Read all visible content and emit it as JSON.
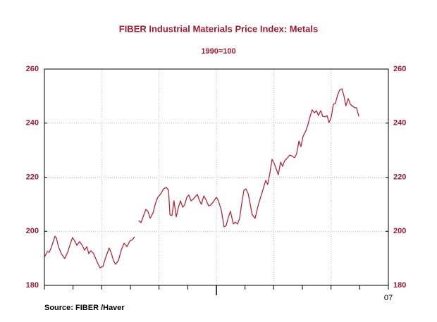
{
  "chart_data": {
    "type": "line",
    "title": "FIBER Industrial Materials Price Index: Metals",
    "subtitle": "1990=100",
    "source": "Source:  FIBER /Haver",
    "xlim": [
      0,
      12
    ],
    "xticks": [
      {
        "value": 12,
        "label": "07"
      }
    ],
    "minor_xticks": [
      0,
      1,
      2,
      3,
      4,
      5,
      6,
      7,
      8,
      9,
      10,
      11
    ],
    "major_xticks": [
      6
    ],
    "xgrid": [
      2,
      4,
      6,
      8,
      10
    ],
    "ylim": [
      180,
      260
    ],
    "yticks": [
      180,
      200,
      220,
      240,
      260
    ],
    "grid": true,
    "series": [
      {
        "name": "Metals",
        "color": "#b0283a",
        "x": [
          0,
          0.1,
          0.17,
          0.25,
          0.37,
          0.42,
          0.49,
          0.59,
          0.71,
          0.81,
          0.91,
          0.98,
          1.06,
          1.13,
          1.23,
          1.33,
          1.4,
          1.48,
          1.55,
          1.62,
          1.72,
          1.84,
          1.94,
          2.04,
          2.14,
          2.26,
          2.34,
          2.41,
          2.48,
          2.58,
          2.68,
          2.78,
          2.88,
          2.98,
          3.07,
          3.15,
          3.22,
          3.29,
          3.37,
          3.47,
          3.54,
          3.61,
          3.69,
          3.79,
          3.88,
          3.96,
          4.06,
          4.16,
          4.25,
          4.33,
          4.38,
          4.45,
          4.52,
          4.6,
          4.67,
          4.75,
          4.82,
          4.89,
          4.97,
          5.04,
          5.11,
          5.19,
          5.26,
          5.34,
          5.41,
          5.48,
          5.56,
          5.63,
          5.73,
          5.8,
          5.9,
          6.0,
          6.07,
          6.17,
          6.27,
          6.34,
          6.42,
          6.49,
          6.59,
          6.66,
          6.74,
          6.81,
          6.88,
          6.96,
          7.03,
          7.11,
          7.18,
          7.25,
          7.35,
          7.45,
          7.52,
          7.62,
          7.72,
          7.79,
          7.87,
          7.94,
          8.02,
          8.09,
          8.16,
          8.24,
          8.31,
          8.38,
          8.46,
          8.56,
          8.63,
          8.73,
          8.8,
          8.88,
          8.95,
          9.02,
          9.12,
          9.2,
          9.27,
          9.34,
          9.42,
          9.49,
          9.56,
          9.64,
          9.71,
          9.79,
          9.86,
          9.93,
          10.01,
          10.08,
          10.15,
          10.23,
          10.3,
          10.38,
          10.45,
          10.52,
          10.6,
          10.67,
          10.74,
          10.82,
          10.89,
          10.97
        ],
        "values": [
          190.4,
          192.5,
          192.2,
          194.3,
          198.2,
          197.5,
          194.3,
          191.7,
          189.9,
          192.2,
          195.6,
          197.7,
          196.4,
          194.8,
          196.2,
          194.6,
          193,
          194.3,
          191.7,
          192.8,
          191.7,
          188.6,
          186.5,
          187,
          190.4,
          193.8,
          191.7,
          189.1,
          187.8,
          189.1,
          193,
          195.6,
          194.3,
          196.4,
          196.9,
          198,
          null,
          204,
          203.2,
          206.1,
          208.1,
          207.4,
          204.8,
          206.8,
          210.5,
          212.6,
          213.9,
          215.7,
          216.2,
          215.2,
          206.1,
          205.8,
          211.3,
          205.3,
          208.7,
          211.3,
          208.9,
          209.7,
          212.6,
          213.4,
          211.3,
          211.8,
          212.8,
          213.6,
          211.3,
          210,
          213.1,
          211.8,
          209.4,
          209.7,
          211,
          212.6,
          211.3,
          207.9,
          201.6,
          202.1,
          205.3,
          207.4,
          202.7,
          203.4,
          202.7,
          204.8,
          210,
          215.2,
          215.7,
          213.9,
          210,
          206.1,
          204.8,
          209.2,
          211.8,
          215.2,
          218.8,
          217.3,
          221.7,
          226.6,
          225.1,
          223,
          220.9,
          225.6,
          224,
          226.1,
          226.9,
          228.2,
          227.9,
          227.2,
          228.7,
          233.4,
          231.3,
          235,
          237.1,
          239.7,
          242.5,
          244.9,
          243.8,
          244.6,
          242.8,
          244.6,
          242.5,
          242.3,
          242.8,
          240.2,
          242.3,
          247,
          247.2,
          250.4,
          252.2,
          252.7,
          250.1,
          246.4,
          249.1,
          247,
          246.4,
          245.7,
          245.7,
          242.5
        ]
      }
    ]
  }
}
